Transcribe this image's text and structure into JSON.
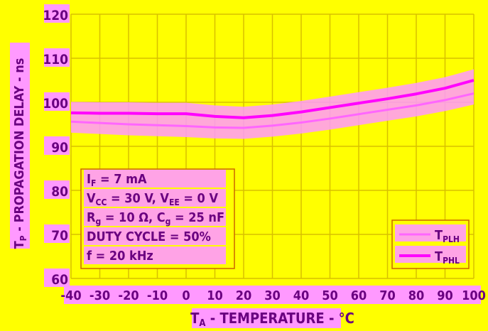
{
  "chart_data": {
    "type": "line",
    "title": "",
    "xlabel": "TA - TEMPERATURE - °C",
    "xlabel_parts": {
      "main": "T",
      "sub": "A",
      "rest": " - TEMPERATURE - °C"
    },
    "ylabel": "TP - PROPAGATION DELAY - ns",
    "ylabel_parts": {
      "main": "T",
      "sub": "P",
      "rest": " - PROPAGATION DELAY - ns"
    },
    "xlim": [
      -40,
      100
    ],
    "ylim": [
      60,
      120
    ],
    "xticks": [
      -40,
      -30,
      -20,
      -10,
      0,
      10,
      20,
      30,
      40,
      50,
      60,
      70,
      80,
      90,
      100
    ],
    "yticks": [
      60,
      70,
      80,
      90,
      100,
      110,
      120
    ],
    "grid": true,
    "x": [
      -40,
      -30,
      -20,
      -10,
      0,
      10,
      20,
      30,
      40,
      50,
      60,
      70,
      80,
      90,
      100
    ],
    "series": [
      {
        "name": "TPLH",
        "label_main": "T",
        "label_sub": "PLH",
        "color": "#ff66ff",
        "values": [
          95.6,
          95.3,
          95.0,
          94.8,
          94.6,
          94.3,
          94.2,
          94.7,
          95.4,
          96.3,
          97.3,
          98.3,
          99.3,
          100.5,
          102.0
        ]
      },
      {
        "name": "TPHL",
        "label_main": "T",
        "label_sub": "PHL",
        "color": "#ff00ff",
        "values": [
          97.6,
          97.5,
          97.5,
          97.4,
          97.4,
          96.8,
          96.5,
          97.0,
          97.8,
          98.8,
          99.8,
          100.8,
          101.9,
          103.2,
          105.0
        ]
      }
    ],
    "legend_position": "bottom-right",
    "conditions": [
      {
        "main": "I",
        "sub": "F",
        "rest": " = 7 mA"
      },
      {
        "main": "V",
        "sub": "CC",
        "rest": " = 30 V, V",
        "sub2": "EE",
        "rest2": " = 0 V"
      },
      {
        "main": "R",
        "sub": "g",
        "rest": "  = 10 Ω, C",
        "sub2": "g",
        "rest2": " = 25 nF"
      },
      {
        "main": "DUTY CYCLE = 50%"
      },
      {
        "main": "f = 20 kHz"
      }
    ],
    "colors": {
      "background": "#ffff00",
      "text": "#6a0080",
      "grid": "#d8c000",
      "box_border": "#cc6600",
      "highlight": "#ff99ff"
    }
  }
}
